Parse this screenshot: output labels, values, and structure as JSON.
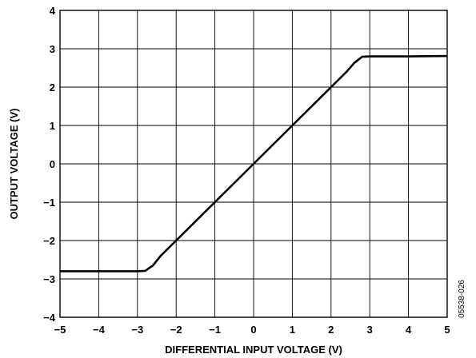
{
  "chart_data": {
    "type": "line",
    "xlabel": "DIFFERENTIAL INPUT VOLTAGE (V)",
    "ylabel": "OUTPUT  VOLTAGE (V)",
    "xlim": [
      -5,
      5
    ],
    "ylim": [
      -4,
      4
    ],
    "x_ticks": [
      "−5",
      "−4",
      "−3",
      "−2",
      "−1",
      "0",
      "1",
      "2",
      "3",
      "4",
      "5"
    ],
    "y_ticks": [
      "4",
      "3",
      "2",
      "1",
      "0",
      "−1",
      "−2",
      "−3",
      "−4"
    ],
    "grid": true,
    "series": [
      {
        "x": [
          -5,
          -4,
          -3,
          -2.8,
          -2.6,
          -2.4,
          -2,
          -1,
          0,
          1,
          2,
          2.4,
          2.6,
          2.8,
          3,
          4,
          5
        ],
        "y": [
          -2.8,
          -2.8,
          -2.8,
          -2.79,
          -2.65,
          -2.4,
          -2,
          -1,
          0,
          1,
          2,
          2.4,
          2.63,
          2.79,
          2.8,
          2.8,
          2.81
        ],
        "color": "#000000"
      }
    ]
  },
  "figure_code": "05538-026"
}
